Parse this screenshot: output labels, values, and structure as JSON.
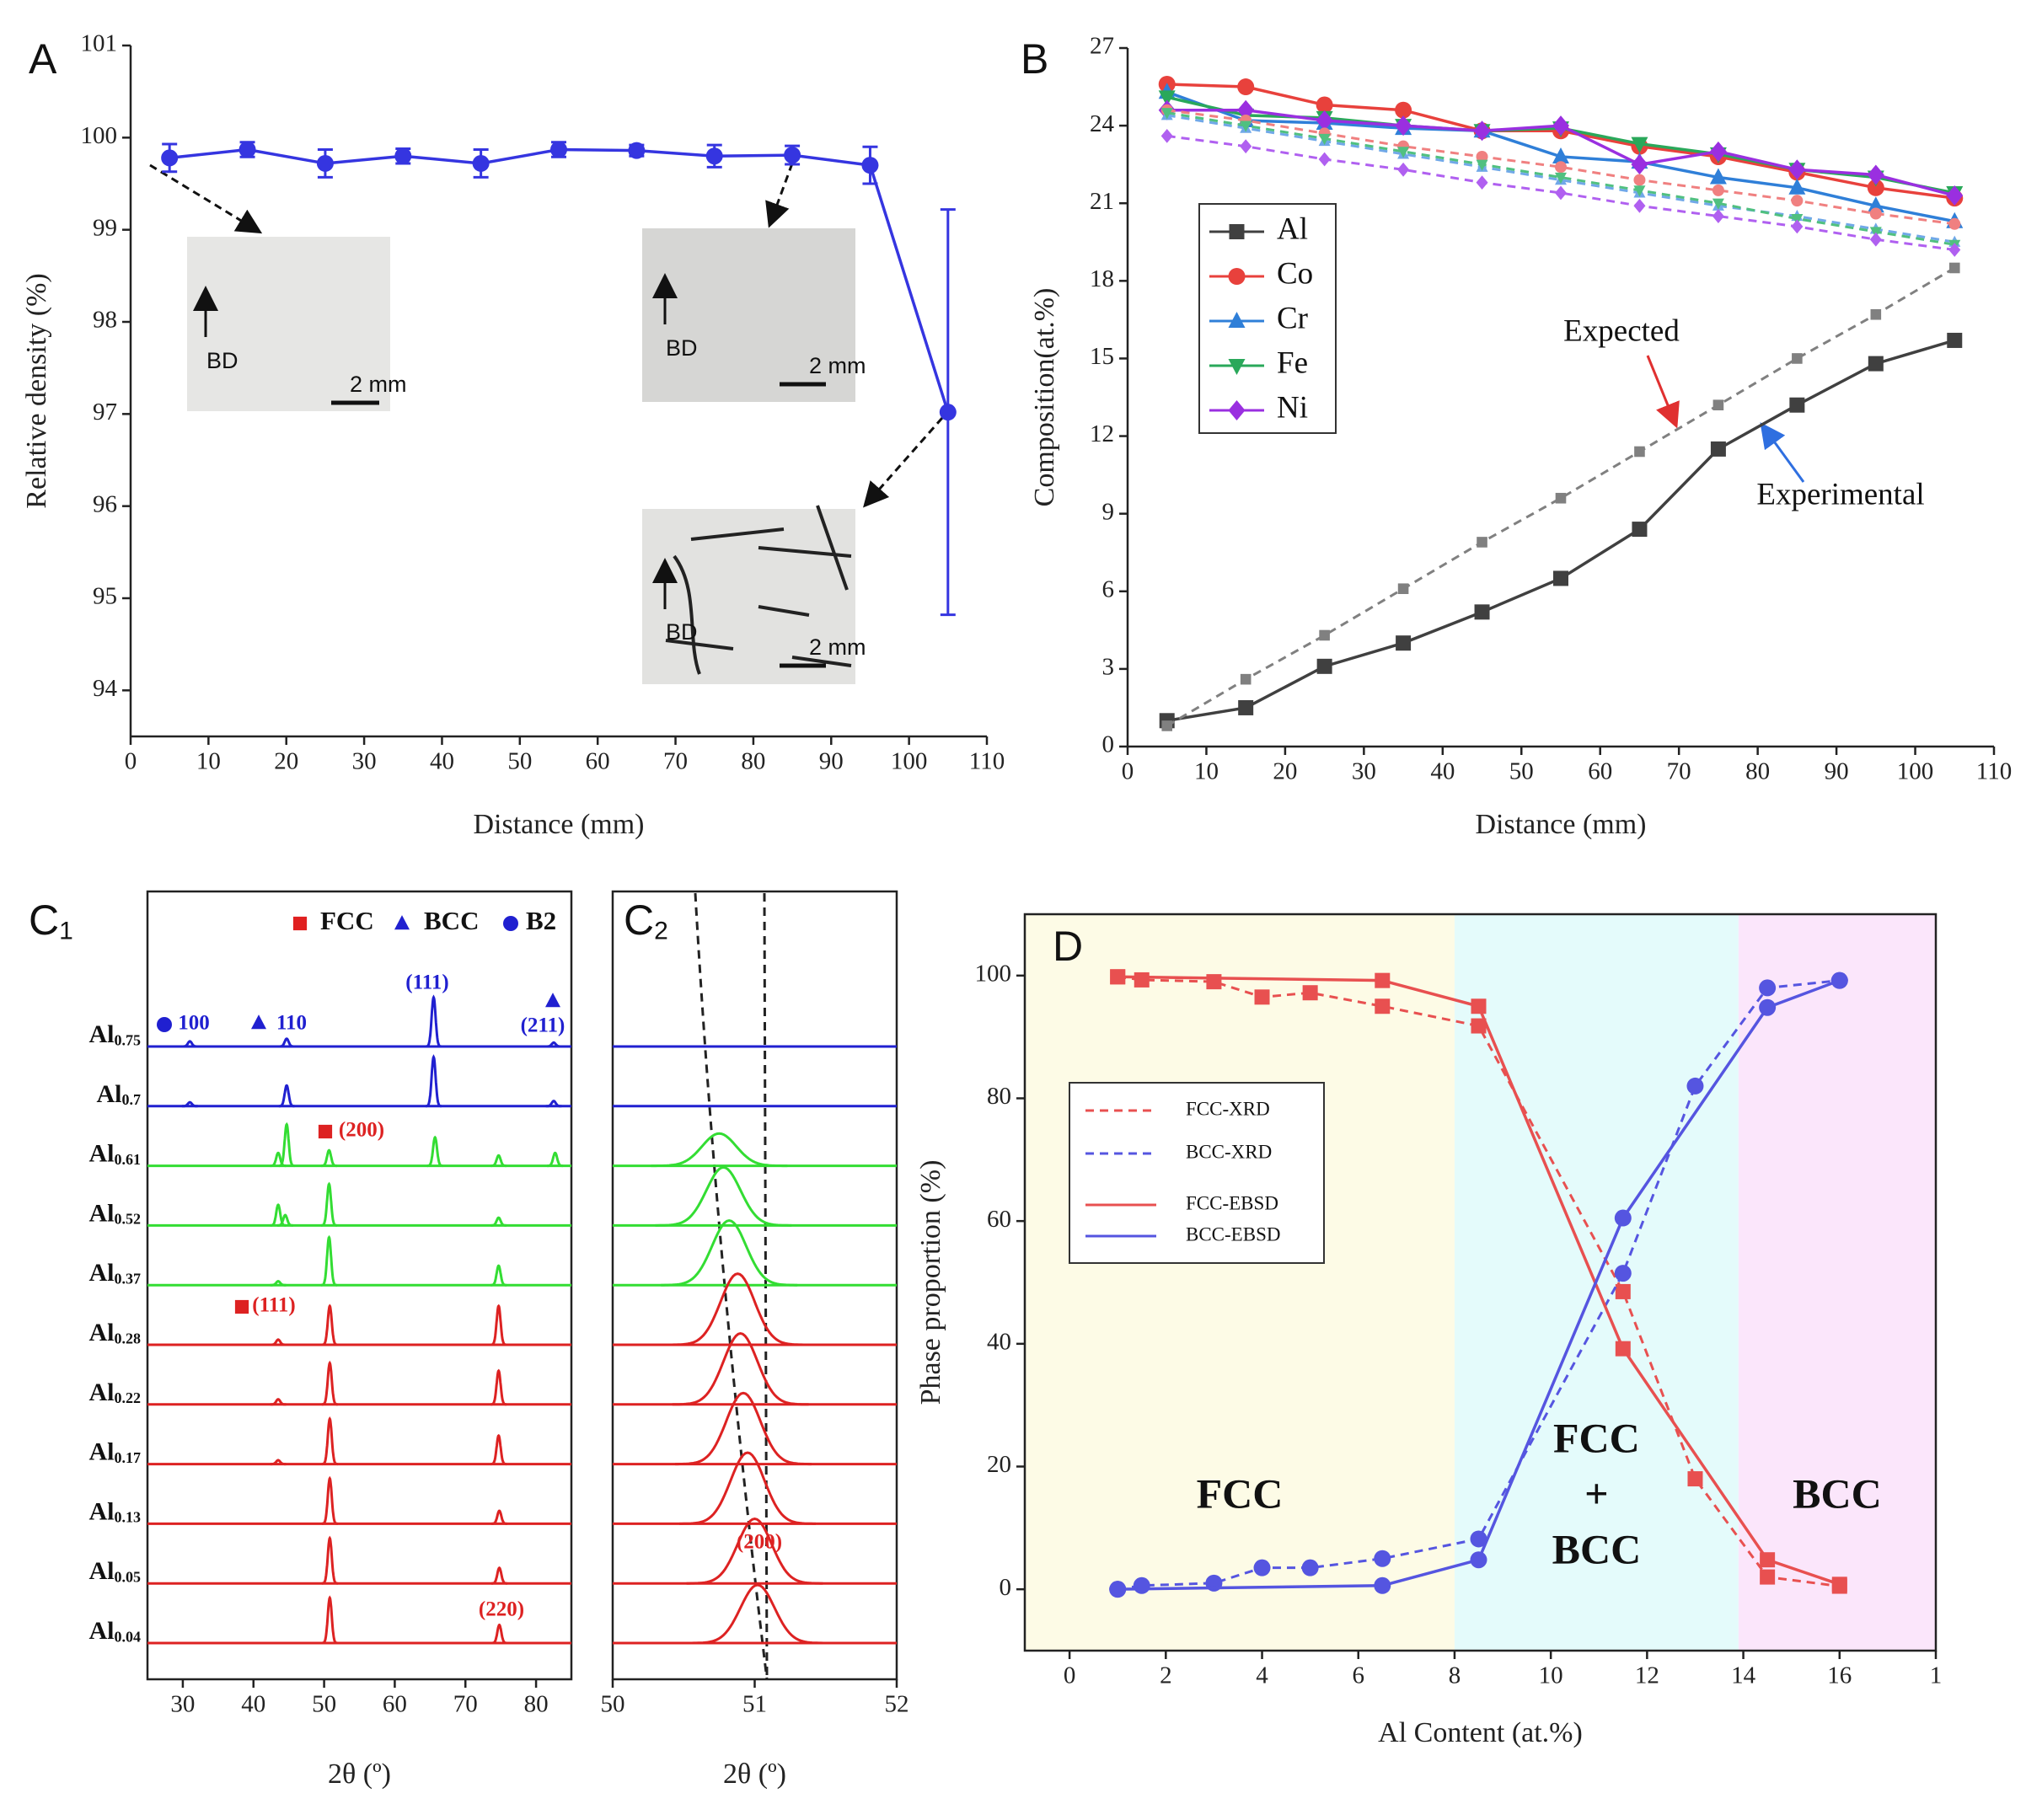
{
  "chart_data": [
    {
      "type": "line",
      "panel_label": "A",
      "xlabel": "Distance (mm)",
      "ylabel": "Relative density (%)",
      "xlim": [
        0,
        110
      ],
      "xticks": [
        0,
        10,
        20,
        30,
        40,
        50,
        60,
        70,
        80,
        90,
        100,
        110
      ],
      "ylim": [
        93.5,
        101
      ],
      "yticks": [
        94,
        95,
        96,
        97,
        98,
        99,
        100,
        101
      ],
      "x": [
        5,
        15,
        25,
        35,
        45,
        55,
        65,
        75,
        85,
        95,
        105
      ],
      "series": [
        {
          "color": "#3535e0",
          "marker": "circle",
          "values": [
            99.78,
            99.87,
            99.72,
            99.8,
            99.72,
            99.87,
            99.86,
            99.8,
            99.81,
            99.7,
            97.02
          ],
          "errors": [
            0.15,
            0.08,
            0.15,
            0.08,
            0.15,
            0.08,
            0.06,
            0.12,
            0.1,
            0.2,
            2.2
          ]
        }
      ],
      "annotations": [
        "BD",
        "2 mm",
        "BD",
        "2 mm",
        "BD",
        "2 mm"
      ]
    },
    {
      "type": "line",
      "panel_label": "B",
      "xlabel": "Distance (mm)",
      "ylabel": "Composition(at.%)",
      "xlim": [
        0,
        110
      ],
      "xticks": [
        0,
        10,
        20,
        30,
        40,
        50,
        60,
        70,
        80,
        90,
        100,
        110
      ],
      "ylim": [
        0,
        27
      ],
      "yticks": [
        0,
        3,
        6,
        9,
        12,
        15,
        18,
        21,
        24,
        27
      ],
      "x": [
        5,
        15,
        25,
        35,
        45,
        55,
        65,
        75,
        85,
        95,
        105
      ],
      "legend": "upper left",
      "series": [
        {
          "name": "Al",
          "color": "#404040",
          "marker": "square",
          "values": [
            1.0,
            1.5,
            3.1,
            4.0,
            5.2,
            6.5,
            8.4,
            11.5,
            13.2,
            14.8,
            15.7
          ]
        },
        {
          "name": "Co",
          "color": "#e8413c",
          "marker": "circle",
          "values": [
            25.6,
            25.5,
            24.8,
            24.6,
            23.8,
            23.8,
            23.2,
            22.8,
            22.2,
            21.6,
            21.2
          ]
        },
        {
          "name": "Cr",
          "color": "#2f7fd8",
          "marker": "triangle",
          "values": [
            25.3,
            24.2,
            24.1,
            23.9,
            23.8,
            22.8,
            22.6,
            22.0,
            21.6,
            20.9,
            20.3
          ]
        },
        {
          "name": "Fe",
          "color": "#2aa85a",
          "marker": "triangle-down",
          "values": [
            25.1,
            24.4,
            24.3,
            24.0,
            23.8,
            23.9,
            23.3,
            22.9,
            22.3,
            22.0,
            21.4
          ]
        },
        {
          "name": "Ni",
          "color": "#9a2fe0",
          "marker": "diamond",
          "values": [
            24.6,
            24.6,
            24.2,
            24.0,
            23.8,
            24.0,
            22.5,
            23.0,
            22.3,
            22.1,
            21.3
          ]
        },
        {
          "color": "#808080",
          "marker": "square",
          "dashed": true,
          "values": [
            0.8,
            2.6,
            4.3,
            6.1,
            7.9,
            9.6,
            11.4,
            13.2,
            15.0,
            16.7,
            18.5
          ]
        },
        {
          "color": "#f08080",
          "marker": "circle",
          "dashed": true,
          "values": [
            24.6,
            24.2,
            23.7,
            23.2,
            22.8,
            22.4,
            21.9,
            21.5,
            21.1,
            20.6,
            20.2
          ]
        },
        {
          "color": "#70a8e8",
          "marker": "triangle",
          "dashed": true,
          "values": [
            24.4,
            23.9,
            23.4,
            22.9,
            22.4,
            21.9,
            21.4,
            20.9,
            20.5,
            20.0,
            19.5
          ]
        },
        {
          "color": "#50c080",
          "marker": "triangle-down",
          "dashed": true,
          "values": [
            24.5,
            24.0,
            23.5,
            23.0,
            22.5,
            22.0,
            21.5,
            21.0,
            20.4,
            19.9,
            19.4
          ]
        },
        {
          "color": "#b060f0",
          "marker": "diamond",
          "dashed": true,
          "values": [
            23.6,
            23.2,
            22.7,
            22.3,
            21.8,
            21.4,
            20.9,
            20.5,
            20.1,
            19.6,
            19.2
          ]
        }
      ],
      "annotations": [
        "Expected",
        "Experimental"
      ]
    },
    {
      "type": "xrd",
      "panel_label": "C1",
      "xlabel": "2θ (º)",
      "xlim": [
        25,
        85
      ],
      "xticks": [
        30,
        40,
        50,
        60,
        70,
        80
      ],
      "peak_width": 0.28,
      "legend": [
        {
          "label": "FCC",
          "marker": "square",
          "color": "#e02020"
        },
        {
          "label": "BCC",
          "marker": "triangle",
          "color": "#2020d0"
        },
        {
          "label": "B2",
          "marker": "circle",
          "color": "#2020d0"
        }
      ],
      "series": [
        {
          "name": "Al0.75",
          "color": "#2020d0",
          "x": [
            31,
            44.7,
            65.5,
            82.5
          ],
          "values": [
            4,
            6,
            38,
            3
          ]
        },
        {
          "name": "Al0.7",
          "color": "#2020d0",
          "x": [
            31,
            44.7,
            65.5,
            82.5
          ],
          "values": [
            3,
            16,
            38,
            4
          ]
        },
        {
          "name": "Al0.61",
          "color": "#33dd33",
          "x": [
            43.5,
            44.7,
            50.7,
            65.7,
            74.7,
            82.7
          ],
          "values": [
            10,
            32,
            12,
            22,
            8,
            10
          ]
        },
        {
          "name": "Al0.52",
          "color": "#33dd33",
          "x": [
            43.5,
            44.5,
            50.7,
            74.7
          ],
          "values": [
            16,
            8,
            32,
            6
          ]
        },
        {
          "name": "Al0.37",
          "color": "#33dd33",
          "x": [
            43.5,
            50.7,
            74.7
          ],
          "values": [
            3,
            37,
            15
          ]
        },
        {
          "name": "Al0.28",
          "color": "#dd2222",
          "x": [
            43.5,
            50.8,
            74.7
          ],
          "values": [
            4,
            30,
            30
          ]
        },
        {
          "name": "Al0.22",
          "color": "#dd2222",
          "x": [
            43.5,
            50.8,
            74.7
          ],
          "values": [
            4,
            32,
            26
          ]
        },
        {
          "name": "Al0.17",
          "color": "#dd2222",
          "x": [
            43.5,
            50.8,
            74.7
          ],
          "values": [
            3,
            35,
            22
          ]
        },
        {
          "name": "Al0.13",
          "color": "#dd2222",
          "x": [
            50.8,
            74.8
          ],
          "values": [
            35,
            10
          ]
        },
        {
          "name": "Al0.05",
          "color": "#dd2222",
          "x": [
            50.8,
            74.8
          ],
          "values": [
            35,
            12
          ]
        },
        {
          "name": "Al0.04",
          "color": "#dd2222",
          "x": [
            50.8,
            74.8
          ],
          "values": [
            35,
            14
          ]
        }
      ],
      "annotations": [
        "100",
        "110",
        "(111)",
        "(211)",
        "(200)",
        "(111)",
        "(220)"
      ]
    },
    {
      "type": "xrd",
      "panel_label": "C2",
      "xlabel": "2θ (º)",
      "xlim": [
        50,
        52
      ],
      "xticks": [
        50,
        51,
        52
      ],
      "peak_width": 0.12,
      "series": [
        {
          "color": "#2020d0",
          "x": [],
          "values": []
        },
        {
          "color": "#2020d0",
          "x": [],
          "values": []
        },
        {
          "color": "#33dd33",
          "x": [
            50.75
          ],
          "values": [
            25
          ]
        },
        {
          "color": "#33dd33",
          "x": [
            50.78
          ],
          "values": [
            45
          ]
        },
        {
          "color": "#33dd33",
          "x": [
            50.82
          ],
          "values": [
            50
          ]
        },
        {
          "color": "#dd2222",
          "x": [
            50.88
          ],
          "values": [
            55
          ]
        },
        {
          "color": "#dd2222",
          "x": [
            50.9
          ],
          "values": [
            55
          ]
        },
        {
          "color": "#dd2222",
          "x": [
            50.92
          ],
          "values": [
            55
          ]
        },
        {
          "color": "#dd2222",
          "x": [
            50.95
          ],
          "values": [
            55
          ]
        },
        {
          "color": "#dd2222",
          "x": [
            51.0
          ],
          "values": [
            50
          ]
        },
        {
          "color": "#dd2222",
          "x": [
            51.02
          ],
          "values": [
            45
          ]
        }
      ],
      "annotations": [
        "(200)"
      ]
    },
    {
      "type": "line",
      "panel_label": "D",
      "xlabel": "Al Content (at.%)",
      "ylabel": "Phase proportion (%)",
      "xlim": [
        -0.93,
        18
      ],
      "xticks": [
        0,
        2,
        4,
        6,
        8,
        10,
        12,
        14,
        16,
        {
          "value": 18,
          "label": "1"
        }
      ],
      "ylim": [
        -10,
        110
      ],
      "yticks": [
        0,
        20,
        40,
        60,
        80,
        100
      ],
      "ytick_color": "#e03030",
      "legend": "center left",
      "regions": [
        {
          "label": [
            "FCC"
          ],
          "range": [
            -0.93,
            8
          ],
          "color": "#fdfbe6"
        },
        {
          "label": [
            "FCC",
            "+",
            "BCC"
          ],
          "range": [
            8,
            13.9
          ],
          "color": "#e4fbfb"
        },
        {
          "label": [
            "BCC"
          ],
          "range": [
            13.9,
            18
          ],
          "color": "#fbe6fb"
        }
      ],
      "series": [
        {
          "name": "FCC-XRD",
          "color": "#e85050",
          "marker": "square",
          "dashed": true,
          "x": [
            1,
            1.5,
            3,
            4,
            5,
            6.5,
            8.5,
            11.5,
            13,
            14.5,
            16
          ],
          "values": [
            99.8,
            99.3,
            99,
            96.5,
            97.2,
            95,
            91.8,
            48.5,
            18,
            2,
            0.5
          ]
        },
        {
          "name": "BCC-XRD",
          "color": "#5555e0",
          "marker": "circle",
          "dashed": true,
          "x": [
            1,
            1.5,
            3,
            4,
            5,
            6.5,
            8.5,
            11.5,
            13,
            14.5,
            16
          ],
          "values": [
            0,
            0.6,
            1,
            3.5,
            3.5,
            5,
            8.2,
            51.5,
            82,
            98,
            99.2
          ]
        },
        {
          "name": "FCC-EBSD",
          "color": "#e85050",
          "marker": "square",
          "x": [
            1,
            6.5,
            8.5,
            11.5,
            14.5,
            16
          ],
          "values": [
            99.8,
            99.2,
            95,
            39.2,
            4.8,
            0.8
          ]
        },
        {
          "name": "BCC-EBSD",
          "color": "#5555e0",
          "marker": "circle",
          "x": [
            1,
            6.5,
            8.5,
            11.5,
            14.5,
            16
          ],
          "values": [
            0,
            0.6,
            4.8,
            60.5,
            94.8,
            99.2
          ]
        }
      ]
    }
  ]
}
